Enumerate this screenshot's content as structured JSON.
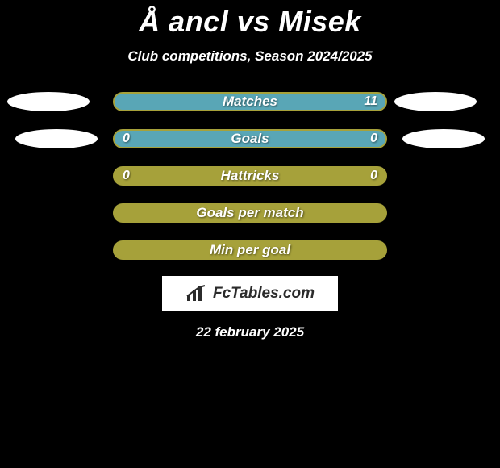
{
  "title": "Å ancl vs Misek",
  "subtitle": "Club competitions, Season 2024/2025",
  "date": "22 february 2025",
  "logo_text": "FcTables.com",
  "colors": {
    "background": "#000000",
    "text": "#ffffff",
    "ellipse": "#ffffff",
    "logo_bg": "#ffffff",
    "logo_text": "#2b2b2b"
  },
  "bar_config": {
    "track_width": 340,
    "track_height": 24,
    "border_radius": 12,
    "border_width": 2,
    "label_fontsize": 17,
    "value_fontsize": 16
  },
  "rows": [
    {
      "label": "Matches",
      "left_value": "",
      "right_value": "11",
      "left_pct": 0,
      "right_pct": 100,
      "left_color": "#59a6b6",
      "right_color": "#59a6b6",
      "border_color": "#a6a13a",
      "empty_color": "#a6a13a"
    },
    {
      "label": "Goals",
      "left_value": "0",
      "right_value": "0",
      "left_pct": 50,
      "right_pct": 50,
      "left_color": "#59a6b6",
      "right_color": "#59a6b6",
      "border_color": "#a6a13a",
      "empty_color": "#a6a13a"
    },
    {
      "label": "Hattricks",
      "left_value": "0",
      "right_value": "0",
      "left_pct": 0,
      "right_pct": 0,
      "left_color": "#59a6b6",
      "right_color": "#59a6b6",
      "border_color": "#a6a13a",
      "empty_color": "#a6a13a"
    },
    {
      "label": "Goals per match",
      "left_value": "",
      "right_value": "",
      "left_pct": 0,
      "right_pct": 0,
      "left_color": "#59a6b6",
      "right_color": "#59a6b6",
      "border_color": "#a6a13a",
      "empty_color": "#a6a13a"
    },
    {
      "label": "Min per goal",
      "left_value": "",
      "right_value": "",
      "left_pct": 0,
      "right_pct": 0,
      "left_color": "#59a6b6",
      "right_color": "#59a6b6",
      "border_color": "#a6a13a",
      "empty_color": "#a6a13a"
    }
  ],
  "ellipses": {
    "color": "#ffffff",
    "width": 102,
    "height": 24
  }
}
